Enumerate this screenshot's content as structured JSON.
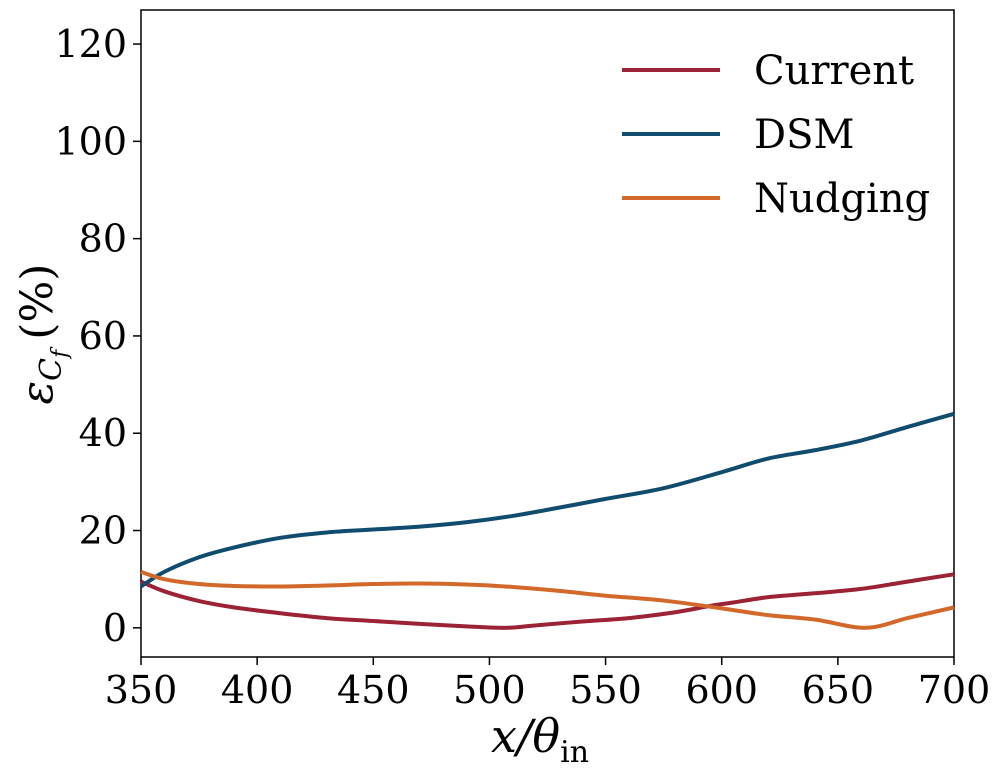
{
  "chart_data": {
    "type": "line",
    "title": "",
    "xlabel": {
      "main": "x/θ",
      "sub": "in"
    },
    "ylabel": {
      "main": "ε",
      "sub": "C",
      "subsub": "f",
      "unit": "(%)"
    },
    "xlim": [
      350,
      700
    ],
    "ylim": [
      -6,
      127
    ],
    "xticks": [
      350,
      400,
      450,
      500,
      550,
      600,
      650,
      700
    ],
    "yticks": [
      0,
      20,
      40,
      60,
      80,
      100,
      120
    ],
    "legend_position": "top-right",
    "series": [
      {
        "name": "Current",
        "color": "#9B2335",
        "x": [
          350,
          360,
          375,
          390,
          410,
          430,
          450,
          470,
          490,
          507,
          520,
          540,
          560,
          580,
          595,
          605,
          620,
          640,
          660,
          680,
          700
        ],
        "y": [
          9.5,
          7.5,
          5.5,
          4.2,
          3.0,
          2.0,
          1.4,
          0.8,
          0.3,
          0.0,
          0.5,
          1.3,
          2.0,
          3.2,
          4.5,
          5.2,
          6.3,
          7.1,
          8.0,
          9.5,
          11.0
        ]
      },
      {
        "name": "DSM",
        "color": "#0F4C6E",
        "x": [
          350,
          360,
          375,
          390,
          410,
          430,
          450,
          470,
          490,
          510,
          530,
          550,
          575,
          600,
          620,
          640,
          660,
          680,
          700
        ],
        "y": [
          8.5,
          11.5,
          14.5,
          16.5,
          18.5,
          19.6,
          20.2,
          20.8,
          21.7,
          23.0,
          24.7,
          26.5,
          28.7,
          32.0,
          34.8,
          36.5,
          38.5,
          41.3,
          44.0
        ]
      },
      {
        "name": "Nudging",
        "color": "#D2692A",
        "x": [
          350,
          360,
          375,
          390,
          410,
          430,
          450,
          470,
          490,
          510,
          530,
          550,
          575,
          600,
          620,
          640,
          662,
          680,
          700
        ],
        "y": [
          11.5,
          10.0,
          9.0,
          8.6,
          8.5,
          8.7,
          9.0,
          9.1,
          8.9,
          8.4,
          7.6,
          6.6,
          5.6,
          4.0,
          2.6,
          1.7,
          0.0,
          2.0,
          4.2
        ]
      }
    ]
  }
}
